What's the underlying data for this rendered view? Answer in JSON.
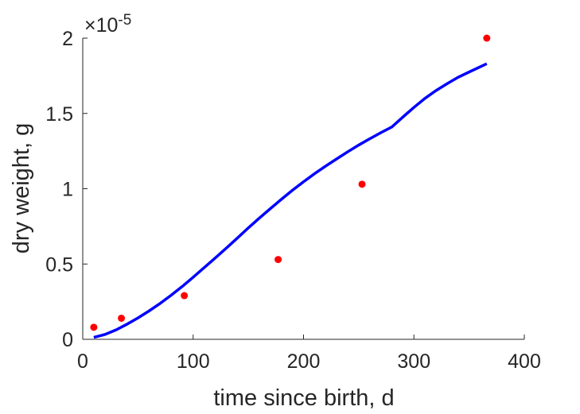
{
  "chart_data": {
    "type": "scatter",
    "title": "",
    "xlabel": "time since birth, d",
    "ylabel": "dry weight, g",
    "xlim": [
      0,
      400
    ],
    "ylim": [
      0,
      2e-05
    ],
    "x_ticks": [
      0,
      100,
      200,
      300,
      400
    ],
    "y_ticks": [
      0,
      0.5,
      1,
      1.5,
      2
    ],
    "x_tick_labels": [
      "0",
      "100",
      "200",
      "300",
      "400"
    ],
    "y_tick_labels": [
      "0",
      "0.5",
      "1",
      "1.5",
      "2"
    ],
    "y_exponent_base": "×10",
    "y_exponent_power": "-5",
    "grid": false,
    "legend": "none",
    "colors": {
      "points": "#ff0000",
      "fit_line": "#0000ff",
      "axis": "#262626"
    },
    "series": [
      {
        "type": "scatter",
        "x": [
          10,
          35,
          92,
          177,
          253,
          366
        ],
        "y": [
          8e-07,
          1.4e-06,
          2.9e-06,
          5.3e-06,
          1.03e-05,
          2e-05
        ]
      },
      {
        "type": "line",
        "x": [
          10,
          20,
          30,
          40,
          50,
          60,
          70,
          80,
          90,
          100,
          110,
          120,
          130,
          140,
          150,
          160,
          170,
          180,
          190,
          200,
          210,
          220,
          230,
          240,
          250,
          260,
          270,
          280,
          290,
          300,
          310,
          320,
          330,
          340,
          350,
          366
        ],
        "y": [
          1.3e-07,
          3.2e-07,
          6.2e-07,
          1e-06,
          1.42e-06,
          1.88e-06,
          2.38e-06,
          2.92e-06,
          3.5e-06,
          4.12e-06,
          4.76e-06,
          5.4e-06,
          6.05e-06,
          6.72e-06,
          7.4e-06,
          8.05e-06,
          8.68e-06,
          9.3e-06,
          9.9e-06,
          1.046e-05,
          1.1e-05,
          1.15e-05,
          1.198e-05,
          1.245e-05,
          1.29e-05,
          1.332e-05,
          1.372e-05,
          1.41e-05,
          1.476e-05,
          1.54e-05,
          1.6e-05,
          1.652e-05,
          1.697e-05,
          1.74e-05,
          1.775e-05,
          1.83e-05
        ]
      }
    ]
  }
}
